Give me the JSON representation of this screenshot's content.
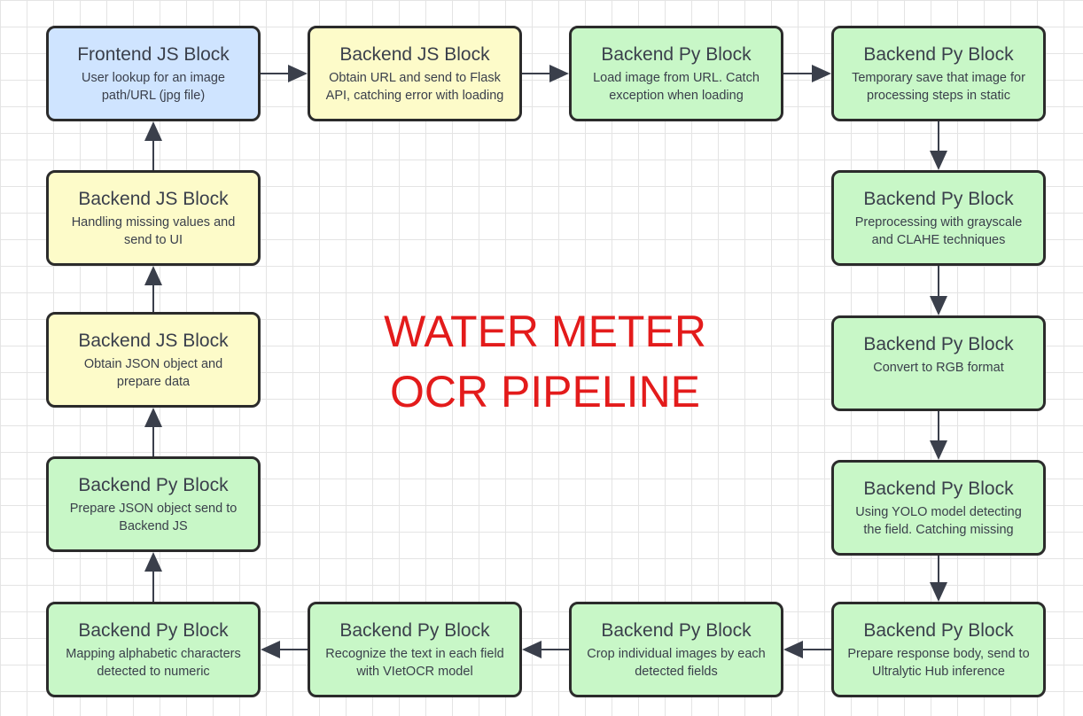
{
  "title": {
    "line1": "WATER METER",
    "line2": "OCR PIPELINE"
  },
  "colors": {
    "blue": "#cfe4ff",
    "yellow": "#fdfbc9",
    "green": "#c8f7c7",
    "title_red": "#e31b1b",
    "border": "#2b2b2b"
  },
  "blocks": [
    {
      "title": "Frontend JS Block",
      "desc": "User lookup for an image path/URL (jpg file)",
      "color": "blue"
    },
    {
      "title": "Backend JS Block",
      "desc": "Obtain URL and send to Flask API, catching error with loading",
      "color": "yellow"
    },
    {
      "title": "Backend Py Block",
      "desc": "Load image from URL. Catch exception when loading",
      "color": "green"
    },
    {
      "title": "Backend Py Block",
      "desc": "Temporary save that image for processing steps in static",
      "color": "green"
    },
    {
      "title": "Backend Py Block",
      "desc": "Preprocessing with grayscale and CLAHE techniques",
      "color": "green"
    },
    {
      "title": "Backend Py Block",
      "desc": "Convert to RGB format",
      "color": "green"
    },
    {
      "title": "Backend Py Block",
      "desc": "Using YOLO model detecting the field. Catching missing",
      "color": "green"
    },
    {
      "title": "Backend Py Block",
      "desc": "Prepare response body, send to Ultralytic Hub inference",
      "color": "green"
    },
    {
      "title": "Backend Py Block",
      "desc": "Crop individual images by each detected fields",
      "color": "green"
    },
    {
      "title": "Backend Py Block",
      "desc": "Recognize the text in each field with VIetOCR model",
      "color": "green"
    },
    {
      "title": "Backend Py Block",
      "desc": "Mapping alphabetic characters detected to numeric",
      "color": "green"
    },
    {
      "title": "Backend Py Block",
      "desc": "Prepare JSON object send to Backend JS",
      "color": "green"
    },
    {
      "title": "Backend JS Block",
      "desc": "Obtain JSON object and prepare data",
      "color": "yellow"
    },
    {
      "title": "Backend JS Block",
      "desc": "Handling missing values and send to UI",
      "color": "yellow"
    }
  ]
}
